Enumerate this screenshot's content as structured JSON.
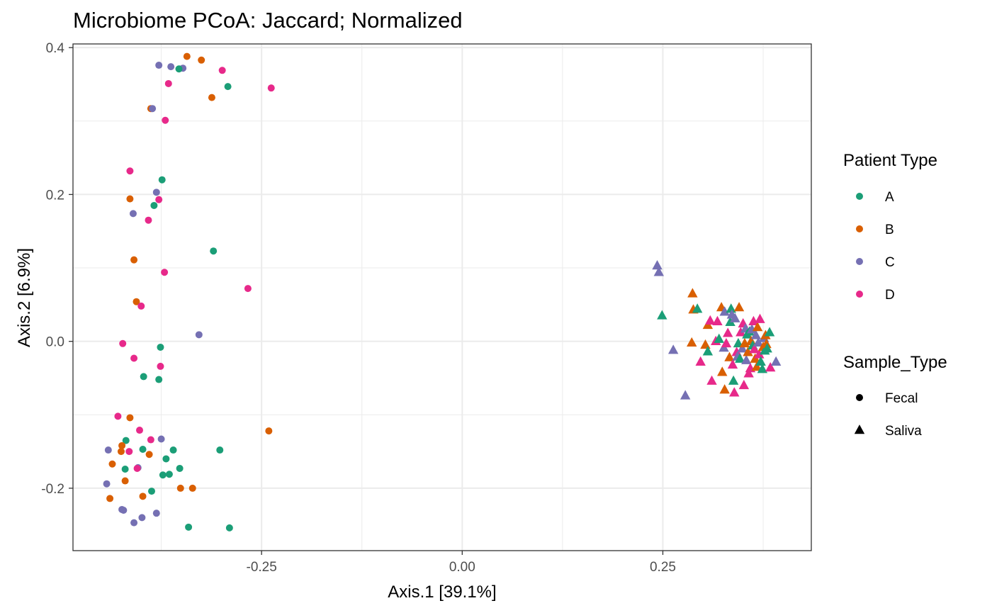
{
  "chart_data": {
    "type": "scatter",
    "title": "Microbiome PCoA: Jaccard; Normalized",
    "xlabel": "Axis.1   [39.1%]",
    "ylabel": "Axis.2   [6.9%]",
    "xlim": [
      -0.485,
      0.435
    ],
    "ylim": [
      -0.285,
      0.405
    ],
    "x_ticks": [
      -0.25,
      0.0,
      0.25
    ],
    "x_tick_labels": [
      "-0.25",
      "0.00",
      "0.25"
    ],
    "y_ticks": [
      -0.2,
      0.0,
      0.2,
      0.4
    ],
    "y_tick_labels": [
      "-0.2",
      "0.0",
      "0.2",
      "0.4"
    ],
    "grid": true,
    "legend_position": "right",
    "color_legend": {
      "title": "Patient Type",
      "entries": [
        {
          "label": "A",
          "color": "#1b9e77"
        },
        {
          "label": "B",
          "color": "#d95f02"
        },
        {
          "label": "C",
          "color": "#7570b3"
        },
        {
          "label": "D",
          "color": "#e7298a"
        }
      ]
    },
    "shape_legend": {
      "title": "Sample_Type",
      "entries": [
        {
          "label": "Fecal",
          "shape": "circle"
        },
        {
          "label": "Saliva",
          "shape": "triangle"
        }
      ]
    },
    "points": [
      {
        "x": -0.378,
        "y": 0.376,
        "patient": "C",
        "sample": "Fecal"
      },
      {
        "x": -0.363,
        "y": 0.374,
        "patient": "C",
        "sample": "Fecal"
      },
      {
        "x": -0.348,
        "y": 0.372,
        "patient": "C",
        "sample": "Fecal"
      },
      {
        "x": -0.353,
        "y": 0.371,
        "patient": "A",
        "sample": "Fecal"
      },
      {
        "x": -0.343,
        "y": 0.388,
        "patient": "B",
        "sample": "Fecal"
      },
      {
        "x": -0.325,
        "y": 0.383,
        "patient": "B",
        "sample": "Fecal"
      },
      {
        "x": -0.299,
        "y": 0.369,
        "patient": "D",
        "sample": "Fecal"
      },
      {
        "x": -0.292,
        "y": 0.347,
        "patient": "A",
        "sample": "Fecal"
      },
      {
        "x": -0.238,
        "y": 0.345,
        "patient": "D",
        "sample": "Fecal"
      },
      {
        "x": -0.312,
        "y": 0.332,
        "patient": "B",
        "sample": "Fecal"
      },
      {
        "x": -0.366,
        "y": 0.351,
        "patient": "D",
        "sample": "Fecal"
      },
      {
        "x": -0.388,
        "y": 0.317,
        "patient": "B",
        "sample": "Fecal"
      },
      {
        "x": -0.386,
        "y": 0.317,
        "patient": "C",
        "sample": "Fecal"
      },
      {
        "x": -0.37,
        "y": 0.301,
        "patient": "D",
        "sample": "Fecal"
      },
      {
        "x": -0.414,
        "y": 0.232,
        "patient": "D",
        "sample": "Fecal"
      },
      {
        "x": -0.374,
        "y": 0.22,
        "patient": "A",
        "sample": "Fecal"
      },
      {
        "x": -0.414,
        "y": 0.194,
        "patient": "B",
        "sample": "Fecal"
      },
      {
        "x": -0.381,
        "y": 0.203,
        "patient": "C",
        "sample": "Fecal"
      },
      {
        "x": -0.378,
        "y": 0.193,
        "patient": "D",
        "sample": "Fecal"
      },
      {
        "x": -0.384,
        "y": 0.185,
        "patient": "A",
        "sample": "Fecal"
      },
      {
        "x": -0.41,
        "y": 0.174,
        "patient": "C",
        "sample": "Fecal"
      },
      {
        "x": -0.391,
        "y": 0.165,
        "patient": "D",
        "sample": "Fecal"
      },
      {
        "x": -0.31,
        "y": 0.123,
        "patient": "A",
        "sample": "Fecal"
      },
      {
        "x": -0.409,
        "y": 0.111,
        "patient": "B",
        "sample": "Fecal"
      },
      {
        "x": -0.371,
        "y": 0.094,
        "patient": "D",
        "sample": "Fecal"
      },
      {
        "x": -0.267,
        "y": 0.072,
        "patient": "D",
        "sample": "Fecal"
      },
      {
        "x": -0.406,
        "y": 0.054,
        "patient": "B",
        "sample": "Fecal"
      },
      {
        "x": -0.4,
        "y": 0.048,
        "patient": "D",
        "sample": "Fecal"
      },
      {
        "x": -0.328,
        "y": 0.009,
        "patient": "C",
        "sample": "Fecal"
      },
      {
        "x": -0.423,
        "y": -0.003,
        "patient": "D",
        "sample": "Fecal"
      },
      {
        "x": -0.376,
        "y": -0.008,
        "patient": "A",
        "sample": "Fecal"
      },
      {
        "x": -0.409,
        "y": -0.023,
        "patient": "D",
        "sample": "Fecal"
      },
      {
        "x": -0.376,
        "y": -0.034,
        "patient": "D",
        "sample": "Fecal"
      },
      {
        "x": -0.397,
        "y": -0.048,
        "patient": "A",
        "sample": "Fecal"
      },
      {
        "x": -0.378,
        "y": -0.052,
        "patient": "A",
        "sample": "Fecal"
      },
      {
        "x": -0.429,
        "y": -0.102,
        "patient": "D",
        "sample": "Fecal"
      },
      {
        "x": -0.414,
        "y": -0.104,
        "patient": "B",
        "sample": "Fecal"
      },
      {
        "x": -0.402,
        "y": -0.121,
        "patient": "D",
        "sample": "Fecal"
      },
      {
        "x": -0.375,
        "y": -0.133,
        "patient": "C",
        "sample": "Fecal"
      },
      {
        "x": -0.388,
        "y": -0.134,
        "patient": "D",
        "sample": "Fecal"
      },
      {
        "x": -0.419,
        "y": -0.135,
        "patient": "A",
        "sample": "Fecal"
      },
      {
        "x": -0.424,
        "y": -0.142,
        "patient": "B",
        "sample": "Fecal"
      },
      {
        "x": -0.441,
        "y": -0.148,
        "patient": "C",
        "sample": "Fecal"
      },
      {
        "x": -0.425,
        "y": -0.15,
        "patient": "B",
        "sample": "Fecal"
      },
      {
        "x": -0.415,
        "y": -0.15,
        "patient": "D",
        "sample": "Fecal"
      },
      {
        "x": -0.398,
        "y": -0.147,
        "patient": "A",
        "sample": "Fecal"
      },
      {
        "x": -0.36,
        "y": -0.148,
        "patient": "A",
        "sample": "Fecal"
      },
      {
        "x": -0.302,
        "y": -0.148,
        "patient": "A",
        "sample": "Fecal"
      },
      {
        "x": -0.39,
        "y": -0.154,
        "patient": "B",
        "sample": "Fecal"
      },
      {
        "x": -0.369,
        "y": -0.16,
        "patient": "A",
        "sample": "Fecal"
      },
      {
        "x": -0.436,
        "y": -0.167,
        "patient": "B",
        "sample": "Fecal"
      },
      {
        "x": -0.42,
        "y": -0.174,
        "patient": "A",
        "sample": "Fecal"
      },
      {
        "x": -0.404,
        "y": -0.172,
        "patient": "C",
        "sample": "Fecal"
      },
      {
        "x": -0.405,
        "y": -0.173,
        "patient": "D",
        "sample": "Fecal"
      },
      {
        "x": -0.352,
        "y": -0.173,
        "patient": "A",
        "sample": "Fecal"
      },
      {
        "x": -0.373,
        "y": -0.182,
        "patient": "A",
        "sample": "Fecal"
      },
      {
        "x": -0.365,
        "y": -0.181,
        "patient": "A",
        "sample": "Fecal"
      },
      {
        "x": -0.42,
        "y": -0.19,
        "patient": "B",
        "sample": "Fecal"
      },
      {
        "x": -0.443,
        "y": -0.194,
        "patient": "C",
        "sample": "Fecal"
      },
      {
        "x": -0.351,
        "y": -0.2,
        "patient": "B",
        "sample": "Fecal"
      },
      {
        "x": -0.336,
        "y": -0.2,
        "patient": "B",
        "sample": "Fecal"
      },
      {
        "x": -0.387,
        "y": -0.204,
        "patient": "A",
        "sample": "Fecal"
      },
      {
        "x": -0.398,
        "y": -0.211,
        "patient": "B",
        "sample": "Fecal"
      },
      {
        "x": -0.439,
        "y": -0.214,
        "patient": "B",
        "sample": "Fecal"
      },
      {
        "x": -0.424,
        "y": -0.229,
        "patient": "C",
        "sample": "Fecal"
      },
      {
        "x": -0.422,
        "y": -0.23,
        "patient": "C",
        "sample": "Fecal"
      },
      {
        "x": -0.381,
        "y": -0.234,
        "patient": "C",
        "sample": "Fecal"
      },
      {
        "x": -0.399,
        "y": -0.24,
        "patient": "C",
        "sample": "Fecal"
      },
      {
        "x": -0.409,
        "y": -0.247,
        "patient": "C",
        "sample": "Fecal"
      },
      {
        "x": -0.341,
        "y": -0.253,
        "patient": "A",
        "sample": "Fecal"
      },
      {
        "x": -0.29,
        "y": -0.254,
        "patient": "A",
        "sample": "Fecal"
      },
      {
        "x": -0.241,
        "y": -0.122,
        "patient": "B",
        "sample": "Fecal"
      },
      {
        "x": 0.243,
        "y": 0.103,
        "patient": "C",
        "sample": "Saliva"
      },
      {
        "x": 0.245,
        "y": 0.094,
        "patient": "C",
        "sample": "Saliva"
      },
      {
        "x": 0.249,
        "y": 0.035,
        "patient": "A",
        "sample": "Saliva"
      },
      {
        "x": 0.263,
        "y": -0.012,
        "patient": "C",
        "sample": "Saliva"
      },
      {
        "x": 0.278,
        "y": -0.074,
        "patient": "C",
        "sample": "Saliva"
      },
      {
        "x": 0.287,
        "y": 0.065,
        "patient": "B",
        "sample": "Saliva"
      },
      {
        "x": 0.288,
        "y": 0.043,
        "patient": "B",
        "sample": "Saliva"
      },
      {
        "x": 0.293,
        "y": 0.044,
        "patient": "A",
        "sample": "Saliva"
      },
      {
        "x": 0.286,
        "y": -0.002,
        "patient": "B",
        "sample": "Saliva"
      },
      {
        "x": 0.297,
        "y": -0.028,
        "patient": "D",
        "sample": "Saliva"
      },
      {
        "x": 0.303,
        "y": -0.005,
        "patient": "B",
        "sample": "Saliva"
      },
      {
        "x": 0.306,
        "y": 0.022,
        "patient": "B",
        "sample": "Saliva"
      },
      {
        "x": 0.309,
        "y": 0.028,
        "patient": "D",
        "sample": "Saliva"
      },
      {
        "x": 0.306,
        "y": -0.014,
        "patient": "A",
        "sample": "Saliva"
      },
      {
        "x": 0.311,
        "y": -0.054,
        "patient": "D",
        "sample": "Saliva"
      },
      {
        "x": 0.316,
        "y": 0.0,
        "patient": "D",
        "sample": "Saliva"
      },
      {
        "x": 0.318,
        "y": 0.027,
        "patient": "D",
        "sample": "Saliva"
      },
      {
        "x": 0.32,
        "y": 0.003,
        "patient": "A",
        "sample": "Saliva"
      },
      {
        "x": 0.323,
        "y": 0.046,
        "patient": "B",
        "sample": "Saliva"
      },
      {
        "x": 0.324,
        "y": -0.042,
        "patient": "B",
        "sample": "Saliva"
      },
      {
        "x": 0.326,
        "y": -0.009,
        "patient": "C",
        "sample": "Saliva"
      },
      {
        "x": 0.327,
        "y": 0.04,
        "patient": "C",
        "sample": "Saliva"
      },
      {
        "x": 0.327,
        "y": -0.066,
        "patient": "B",
        "sample": "Saliva"
      },
      {
        "x": 0.329,
        "y": -0.003,
        "patient": "D",
        "sample": "Saliva"
      },
      {
        "x": 0.331,
        "y": 0.011,
        "patient": "D",
        "sample": "Saliva"
      },
      {
        "x": 0.333,
        "y": -0.022,
        "patient": "B",
        "sample": "Saliva"
      },
      {
        "x": 0.334,
        "y": 0.026,
        "patient": "A",
        "sample": "Saliva"
      },
      {
        "x": 0.335,
        "y": 0.044,
        "patient": "A",
        "sample": "Saliva"
      },
      {
        "x": 0.336,
        "y": 0.036,
        "patient": "C",
        "sample": "Saliva"
      },
      {
        "x": 0.337,
        "y": -0.032,
        "patient": "D",
        "sample": "Saliva"
      },
      {
        "x": 0.338,
        "y": -0.054,
        "patient": "A",
        "sample": "Saliva"
      },
      {
        "x": 0.339,
        "y": -0.07,
        "patient": "D",
        "sample": "Saliva"
      },
      {
        "x": 0.34,
        "y": 0.031,
        "patient": "C",
        "sample": "Saliva"
      },
      {
        "x": 0.342,
        "y": -0.015,
        "patient": "D",
        "sample": "Saliva"
      },
      {
        "x": 0.343,
        "y": -0.021,
        "patient": "C",
        "sample": "Saliva"
      },
      {
        "x": 0.344,
        "y": -0.003,
        "patient": "A",
        "sample": "Saliva"
      },
      {
        "x": 0.345,
        "y": 0.046,
        "patient": "B",
        "sample": "Saliva"
      },
      {
        "x": 0.346,
        "y": -0.024,
        "patient": "A",
        "sample": "Saliva"
      },
      {
        "x": 0.347,
        "y": 0.012,
        "patient": "D",
        "sample": "Saliva"
      },
      {
        "x": 0.349,
        "y": -0.01,
        "patient": "C",
        "sample": "Saliva"
      },
      {
        "x": 0.35,
        "y": 0.024,
        "patient": "D",
        "sample": "Saliva"
      },
      {
        "x": 0.351,
        "y": -0.06,
        "patient": "D",
        "sample": "Saliva"
      },
      {
        "x": 0.352,
        "y": -0.003,
        "patient": "B",
        "sample": "Saliva"
      },
      {
        "x": 0.353,
        "y": 0.017,
        "patient": "C",
        "sample": "Saliva"
      },
      {
        "x": 0.354,
        "y": -0.026,
        "patient": "C",
        "sample": "Saliva"
      },
      {
        "x": 0.355,
        "y": 0.009,
        "patient": "A",
        "sample": "Saliva"
      },
      {
        "x": 0.356,
        "y": -0.015,
        "patient": "B",
        "sample": "Saliva"
      },
      {
        "x": 0.357,
        "y": -0.044,
        "patient": "D",
        "sample": "Saliva"
      },
      {
        "x": 0.358,
        "y": 0.013,
        "patient": "A",
        "sample": "Saliva"
      },
      {
        "x": 0.359,
        "y": -0.037,
        "patient": "D",
        "sample": "Saliva"
      },
      {
        "x": 0.36,
        "y": 0.0,
        "patient": "B",
        "sample": "Saliva"
      },
      {
        "x": 0.361,
        "y": 0.016,
        "patient": "C",
        "sample": "Saliva"
      },
      {
        "x": 0.362,
        "y": -0.006,
        "patient": "A",
        "sample": "Saliva"
      },
      {
        "x": 0.363,
        "y": 0.027,
        "patient": "D",
        "sample": "Saliva"
      },
      {
        "x": 0.364,
        "y": -0.011,
        "patient": "D",
        "sample": "Saliva"
      },
      {
        "x": 0.365,
        "y": -0.024,
        "patient": "B",
        "sample": "Saliva"
      },
      {
        "x": 0.366,
        "y": 0.008,
        "patient": "C",
        "sample": "Saliva"
      },
      {
        "x": 0.367,
        "y": -0.035,
        "patient": "B",
        "sample": "Saliva"
      },
      {
        "x": 0.368,
        "y": 0.019,
        "patient": "B",
        "sample": "Saliva"
      },
      {
        "x": 0.369,
        "y": -0.002,
        "patient": "C",
        "sample": "Saliva"
      },
      {
        "x": 0.37,
        "y": -0.018,
        "patient": "D",
        "sample": "Saliva"
      },
      {
        "x": 0.371,
        "y": 0.03,
        "patient": "D",
        "sample": "Saliva"
      },
      {
        "x": 0.372,
        "y": -0.028,
        "patient": "A",
        "sample": "Saliva"
      },
      {
        "x": 0.374,
        "y": -0.038,
        "patient": "A",
        "sample": "Saliva"
      },
      {
        "x": 0.375,
        "y": -0.008,
        "patient": "B",
        "sample": "Saliva"
      },
      {
        "x": 0.376,
        "y": 0.004,
        "patient": "C",
        "sample": "Saliva"
      },
      {
        "x": 0.377,
        "y": -0.013,
        "patient": "A",
        "sample": "Saliva"
      },
      {
        "x": 0.378,
        "y": 0.008,
        "patient": "B",
        "sample": "Saliva"
      },
      {
        "x": 0.379,
        "y": -0.004,
        "patient": "B",
        "sample": "Saliva"
      },
      {
        "x": 0.38,
        "y": -0.01,
        "patient": "A",
        "sample": "Saliva"
      },
      {
        "x": 0.383,
        "y": 0.012,
        "patient": "A",
        "sample": "Saliva"
      },
      {
        "x": 0.384,
        "y": -0.036,
        "patient": "D",
        "sample": "Saliva"
      },
      {
        "x": 0.391,
        "y": -0.028,
        "patient": "C",
        "sample": "Saliva"
      }
    ]
  }
}
